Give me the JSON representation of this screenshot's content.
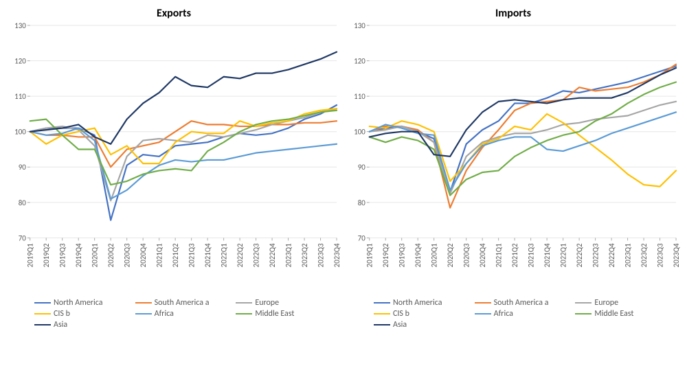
{
  "layout": {
    "background_color": "#ffffff",
    "grid_color": "#e6e6e6",
    "tick_color": "#aaaaaa",
    "text_color": "#595959",
    "title_color": "#000000",
    "title_fontsize": 16,
    "tick_fontsize": 11,
    "legend_fontsize": 12,
    "line_width": 2.2,
    "ylim": [
      70,
      130
    ],
    "ytick_step": 10
  },
  "x_categories": [
    "2019Q1",
    "2019Q2",
    "2019Q3",
    "2019Q4",
    "2020Q1",
    "2020Q2",
    "2020Q3",
    "2020Q4",
    "2021Q1",
    "2021Q2",
    "2021Q3",
    "2021Q4",
    "2022Q1",
    "2022Q2",
    "2022Q3",
    "2022Q4",
    "2023Q1",
    "2023Q2",
    "2023Q3",
    "2023Q4"
  ],
  "series_meta": [
    {
      "key": "north_america",
      "label": "North America",
      "color": "#4472c4"
    },
    {
      "key": "south_america",
      "label": "South America a",
      "color": "#ed7d31"
    },
    {
      "key": "europe",
      "label": "Europe",
      "color": "#a5a5a5"
    },
    {
      "key": "cis",
      "label": "CIS b",
      "color": "#ffc000"
    },
    {
      "key": "africa",
      "label": "Africa",
      "color": "#5b9bd5"
    },
    {
      "key": "middle_east",
      "label": "Middle East",
      "color": "#70ad47"
    },
    {
      "key": "asia",
      "label": "Asia",
      "color": "#1f3864"
    }
  ],
  "panels": [
    {
      "title": "Exports",
      "name": "exports-chart",
      "series": {
        "north_america": [
          100,
          101,
          101,
          101,
          99,
          75,
          90.5,
          93.5,
          93,
          96,
          96.5,
          97,
          98.5,
          99.5,
          99,
          99.5,
          101,
          103.5,
          105,
          107.5
        ],
        "south_america": [
          100,
          99,
          99,
          98.5,
          98.5,
          90,
          95,
          96,
          97,
          100,
          103,
          102,
          102,
          101.5,
          101.5,
          102,
          102,
          102.5,
          102.5,
          103
        ],
        "europe": [
          100,
          101,
          101.5,
          100.5,
          96,
          80.5,
          93,
          97.5,
          98,
          97.5,
          97,
          99,
          98.5,
          99.5,
          100.5,
          102,
          103,
          104,
          105.5,
          106.5
        ],
        "cis": [
          100,
          96.5,
          99,
          100,
          101,
          93.5,
          96,
          91,
          91,
          97,
          100,
          99.5,
          99.5,
          103,
          101.5,
          102.5,
          103,
          105,
          106,
          106.5
        ],
        "africa": [
          100,
          99,
          99.5,
          101,
          97.5,
          81,
          83.5,
          87.5,
          90.5,
          92,
          91.5,
          92,
          92,
          93,
          94,
          94.5,
          95,
          95.5,
          96,
          96.5
        ],
        "middle_east": [
          103,
          103.5,
          99,
          95,
          95,
          85,
          86,
          88,
          89,
          89.5,
          89,
          94.5,
          97,
          100,
          102,
          103,
          103.5,
          104.5,
          105.5,
          106
        ],
        "asia": [
          100,
          100.5,
          101,
          102,
          98.5,
          96.5,
          103.5,
          108,
          111,
          115.5,
          113,
          112.5,
          115.5,
          115,
          116.5,
          116.5,
          117.5,
          119,
          120.5,
          122.5
        ]
      }
    },
    {
      "title": "Imports",
      "name": "imports-chart",
      "series": {
        "north_america": [
          100,
          101,
          101.5,
          100,
          98,
          83,
          96.5,
          100.5,
          103,
          108,
          108,
          109.5,
          111.5,
          111,
          112,
          113,
          114,
          115.5,
          117,
          118.5
        ],
        "south_america": [
          100,
          101.5,
          101.5,
          100.5,
          97,
          78.5,
          89,
          95.5,
          100.5,
          106,
          108,
          108.5,
          109,
          112.5,
          111.5,
          112,
          112.5,
          114,
          116,
          119
        ],
        "europe": [
          100,
          100.5,
          101.5,
          100,
          97,
          82.5,
          93,
          97,
          98.5,
          99.5,
          99.5,
          100.5,
          102,
          102.5,
          103.5,
          104,
          104.5,
          106,
          107.5,
          108.5
        ],
        "cis": [
          101.5,
          101,
          103,
          102,
          100,
          86,
          91,
          96.5,
          98,
          101.5,
          100.5,
          105,
          102.5,
          99,
          95.5,
          92,
          88,
          85,
          84.5,
          89
        ],
        "africa": [
          100,
          102,
          101,
          99.5,
          99,
          83.5,
          91,
          96,
          97.5,
          98.5,
          98.5,
          95,
          94.5,
          96,
          97.5,
          99.5,
          101,
          102.5,
          104,
          105.5
        ],
        "middle_east": [
          98.5,
          97,
          98.5,
          97.5,
          95,
          82,
          86.5,
          88.5,
          89,
          93,
          95.5,
          97.5,
          99,
          100,
          103,
          105,
          108,
          110.5,
          112.5,
          114
        ],
        "asia": [
          98.5,
          99.5,
          100,
          100,
          93.5,
          93,
          100.5,
          105.5,
          108.5,
          109,
          108.5,
          108,
          109,
          109.5,
          109.5,
          109.5,
          111,
          113.5,
          116,
          118
        ]
      }
    }
  ]
}
